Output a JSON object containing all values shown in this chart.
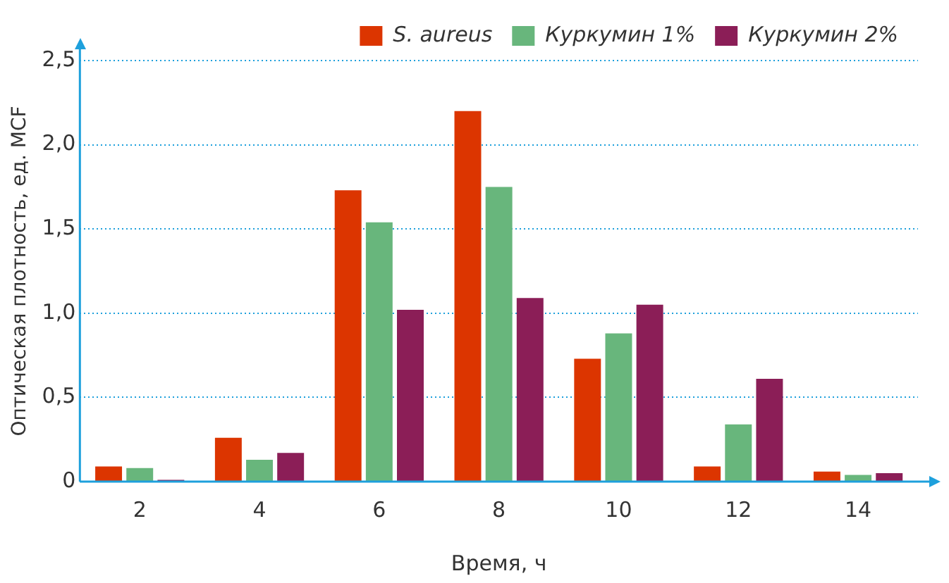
{
  "chart_data": {
    "type": "bar",
    "xlabel": "Время, ч",
    "ylabel": "Оптическая плотность, ед. MCF",
    "categories": [
      "2",
      "4",
      "6",
      "8",
      "10",
      "12",
      "14"
    ],
    "series": [
      {
        "name": "S. aureus",
        "color": "#dc3500",
        "values": [
          0.09,
          0.26,
          1.73,
          2.2,
          0.73,
          0.09,
          0.06
        ]
      },
      {
        "name": "Куркумин 1%",
        "color": "#68b67c",
        "values": [
          0.08,
          0.13,
          1.54,
          1.75,
          0.88,
          0.34,
          0.04
        ]
      },
      {
        "name": "Куркумин 2%",
        "color": "#8b1e57",
        "values": [
          0.01,
          0.17,
          1.02,
          1.09,
          1.05,
          0.61,
          0.05
        ]
      }
    ],
    "ylim": [
      0,
      2.5
    ],
    "yticks": [
      {
        "value": 0,
        "label": "0"
      },
      {
        "value": 0.5,
        "label": "0,5"
      },
      {
        "value": 1,
        "label": "1,0"
      },
      {
        "value": 1.5,
        "label": "1,5"
      },
      {
        "value": 2,
        "label": "2,0"
      },
      {
        "value": 2.5,
        "label": "2,5"
      }
    ],
    "grid": "y",
    "legend": "top right"
  }
}
